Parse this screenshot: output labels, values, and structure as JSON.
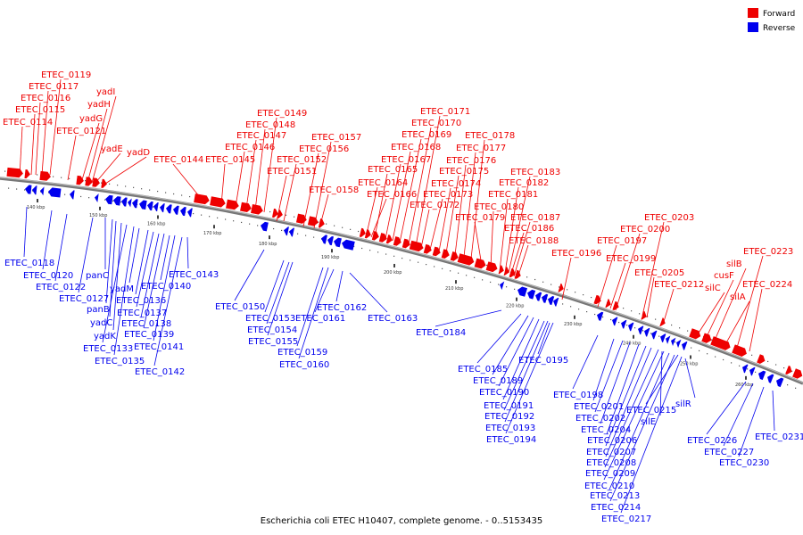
{
  "caption": "Escherichia coli ETEC H10407, complete genome. - 0..5153435",
  "legend": [
    {
      "label": "Forward",
      "color": "#ee0000"
    },
    {
      "label": "Reverse",
      "color": "#0000ee"
    }
  ],
  "colors": {
    "forward": "#ee0000",
    "reverse": "#0000ee",
    "backbone": "#777777",
    "tick": "#000000"
  },
  "kbp_ticks": [
    "140 kbp",
    "150 kbp",
    "160 kbp",
    "170 kbp",
    "180 kbp",
    "190 kbp",
    "200 kbp",
    "210 kbp",
    "220 kbp",
    "230 kbp",
    "240 kbp",
    "250 kbp",
    "260 kbp"
  ],
  "forward_labels": [
    "ETEC_0119",
    "ETEC_0117",
    "ETEC_0116",
    "ETEC_0115",
    "ETEC_0114",
    "yadI",
    "yadH",
    "yadG",
    "ETEC_0121",
    "yadE",
    "yadD",
    "ETEC_0144",
    "ETEC_0145",
    "ETEC_0146",
    "ETEC_0147",
    "ETEC_0148",
    "ETEC_0149",
    "ETEC_0151",
    "ETEC_0152",
    "ETEC_0156",
    "ETEC_0157",
    "ETEC_0158",
    "ETEC_0164",
    "ETEC_0165",
    "ETEC_0166",
    "ETEC_0167",
    "ETEC_0168",
    "ETEC_0169",
    "ETEC_0170",
    "ETEC_0171",
    "ETEC_0172",
    "ETEC_0173",
    "ETEC_0174",
    "ETEC_0175",
    "ETEC_0176",
    "ETEC_0177",
    "ETEC_0178",
    "ETEC_0179",
    "ETEC_0180",
    "ETEC_0181",
    "ETEC_0182",
    "ETEC_0183",
    "ETEC_0186",
    "ETEC_0187",
    "ETEC_0188",
    "ETEC_0196",
    "ETEC_0197",
    "ETEC_0199",
    "ETEC_0200",
    "ETEC_0203",
    "ETEC_0205",
    "ETEC_0212",
    "silC",
    "cusF",
    "silB",
    "silA",
    "ETEC_0223",
    "ETEC_0224"
  ],
  "reverse_labels": [
    "ETEC_0118",
    "ETEC_0120",
    "ETEC_0122",
    "ETEC_0127",
    "panC",
    "panB",
    "yadC",
    "yadK",
    "ETEC_0133",
    "ETEC_0135",
    "yadM",
    "ETEC_0136",
    "ETEC_0137",
    "ETEC_0138",
    "ETEC_0139",
    "ETEC_0140",
    "ETEC_0141",
    "ETEC_0142",
    "ETEC_0143",
    "ETEC_0150",
    "ETEC_0153",
    "ETEC_0154",
    "ETEC_0155",
    "ETEC_0159",
    "ETEC_0160",
    "ETEC_0161",
    "ETEC_0162",
    "ETEC_0163",
    "ETEC_0184",
    "ETEC_0185",
    "ETEC_0189",
    "ETEC_0190",
    "ETEC_0191",
    "ETEC_0192",
    "ETEC_0193",
    "ETEC_0194",
    "ETEC_0195",
    "ETEC_0198",
    "ETEC_0201",
    "ETEC_0202",
    "ETEC_0204",
    "ETEC_0206",
    "ETEC_0207",
    "ETEC_0208",
    "ETEC_0209",
    "ETEC_0210",
    "ETEC_0213",
    "ETEC_0214",
    "ETEC_0215",
    "ETEC_0217",
    "silE",
    "silR",
    "ETEC_0226",
    "ETEC_0227",
    "ETEC_0230",
    "ETEC_0231"
  ]
}
